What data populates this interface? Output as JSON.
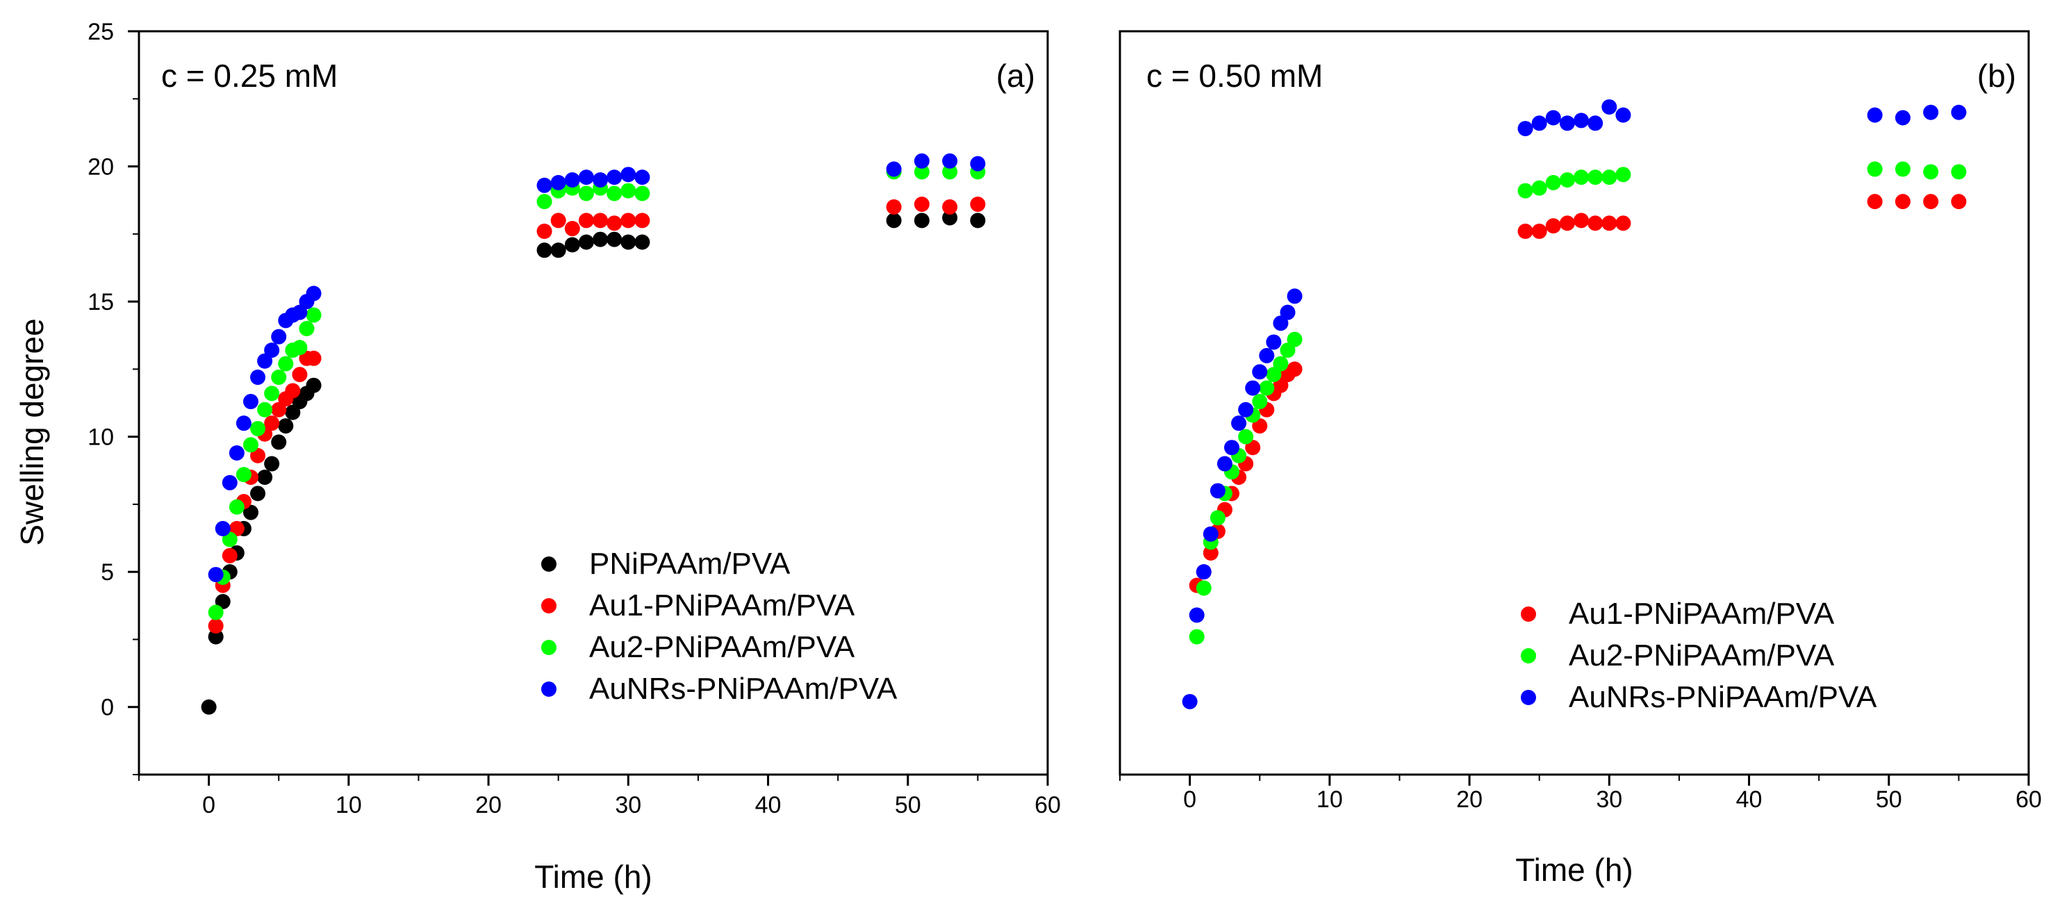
{
  "figure": {
    "ylabel": "Swelling degree",
    "colors": {
      "PNiPAAm/PVA": "#000000",
      "Au1-PNiPAAm/PVA": "#ff0000",
      "Au2-PNiPAAm/PVA": "#00ff00",
      "AuNRs-PNiPAAm/PVA": "#0000ff"
    }
  },
  "chart_data": [
    {
      "type": "scatter",
      "panel_label": "(a)",
      "annotation": "c = 0.25 mM",
      "xlabel": "Time (h)",
      "ylabel": "Swelling degree",
      "xlim": [
        -5,
        60
      ],
      "ylim": [
        -2.5,
        25
      ],
      "xticks": [
        "0",
        "10",
        "20",
        "30",
        "40",
        "50",
        "60"
      ],
      "yticks": [
        "0",
        "5",
        "10",
        "15",
        "20",
        "25"
      ],
      "legend_position": "bottom-right",
      "series": [
        {
          "name": "PNiPAAm/PVA",
          "x": [
            0,
            0.5,
            1,
            1.5,
            2,
            2.5,
            3,
            3.5,
            4,
            4.5,
            5,
            5.5,
            6,
            6.5,
            7,
            7.5,
            24,
            25,
            26,
            27,
            28,
            29,
            30,
            31,
            49,
            51,
            53,
            55
          ],
          "y": [
            0.0,
            2.6,
            3.9,
            5.0,
            5.7,
            6.6,
            7.2,
            7.9,
            8.5,
            9.0,
            9.8,
            10.4,
            10.9,
            11.3,
            11.6,
            11.9,
            16.9,
            16.9,
            17.1,
            17.2,
            17.3,
            17.3,
            17.2,
            17.2,
            18.0,
            18.0,
            18.1,
            18.0
          ]
        },
        {
          "name": "Au1-PNiPAAm/PVA",
          "x": [
            0.5,
            1,
            1.5,
            2,
            2.5,
            3,
            3.5,
            4,
            4.5,
            5,
            5.5,
            6,
            6.5,
            7,
            7.5,
            24,
            25,
            26,
            27,
            28,
            29,
            30,
            31,
            49,
            51,
            53,
            55
          ],
          "y": [
            3.0,
            4.5,
            5.6,
            6.6,
            7.6,
            8.5,
            9.3,
            10.1,
            10.5,
            11.0,
            11.4,
            11.7,
            12.3,
            12.9,
            12.9,
            17.6,
            18.0,
            17.7,
            18.0,
            18.0,
            17.9,
            18.0,
            18.0,
            18.5,
            18.6,
            18.5,
            18.6
          ]
        },
        {
          "name": "Au2-PNiPAAm/PVA",
          "x": [
            0.5,
            1,
            1.5,
            2,
            2.5,
            3,
            3.5,
            4,
            4.5,
            5,
            5.5,
            6,
            6.5,
            7,
            7.5,
            24,
            25,
            26,
            27,
            28,
            29,
            30,
            31,
            49,
            51,
            53,
            55
          ],
          "y": [
            3.5,
            4.8,
            6.2,
            7.4,
            8.6,
            9.7,
            10.3,
            11.0,
            11.6,
            12.2,
            12.7,
            13.2,
            13.3,
            14.0,
            14.5,
            18.7,
            19.1,
            19.2,
            19.0,
            19.2,
            19.0,
            19.1,
            19.0,
            19.8,
            19.8,
            19.8,
            19.8
          ]
        },
        {
          "name": "AuNRs-PNiPAAm/PVA",
          "x": [
            0.5,
            1,
            1.5,
            2,
            2.5,
            3,
            3.5,
            4,
            4.5,
            5,
            5.5,
            6,
            6.5,
            7,
            7.5,
            24,
            25,
            26,
            27,
            28,
            29,
            30,
            31,
            49,
            51,
            53,
            55
          ],
          "y": [
            4.9,
            6.6,
            8.3,
            9.4,
            10.5,
            11.3,
            12.2,
            12.8,
            13.2,
            13.7,
            14.3,
            14.5,
            14.6,
            15.0,
            15.3,
            19.3,
            19.4,
            19.5,
            19.6,
            19.5,
            19.6,
            19.7,
            19.6,
            19.9,
            20.2,
            20.2,
            20.1
          ]
        }
      ]
    },
    {
      "type": "scatter",
      "panel_label": "(b)",
      "annotation": "c = 0.50 mM",
      "xlabel": "Time (h)",
      "ylabel": "",
      "xlim": [
        -5,
        60
      ],
      "ylim": [
        -2.5,
        25
      ],
      "xticks": [
        "0",
        "10",
        "20",
        "30",
        "40",
        "50",
        "60"
      ],
      "yticks": [],
      "legend_position": "bottom-right",
      "series": [
        {
          "name": "Au1-PNiPAAm/PVA",
          "x": [
            0.5,
            1,
            1.5,
            2,
            2.5,
            3,
            3.5,
            4,
            4.5,
            5,
            5.5,
            6,
            6.5,
            7,
            7.5,
            24,
            25,
            26,
            27,
            28,
            29,
            30,
            31,
            49,
            51,
            53,
            55
          ],
          "y": [
            4.5,
            5.0,
            5.7,
            6.5,
            7.3,
            7.9,
            8.5,
            9.0,
            9.6,
            10.4,
            11.0,
            11.6,
            11.9,
            12.3,
            12.5,
            17.6,
            17.6,
            17.8,
            17.9,
            18.0,
            17.9,
            17.9,
            17.9,
            18.7,
            18.7,
            18.7,
            18.7
          ]
        },
        {
          "name": "Au2-PNiPAAm/PVA",
          "x": [
            0.5,
            1,
            1.5,
            2,
            2.5,
            3,
            3.5,
            4,
            4.5,
            5,
            5.5,
            6,
            6.5,
            7,
            7.5,
            24,
            25,
            26,
            27,
            28,
            29,
            30,
            31,
            49,
            51,
            53,
            55
          ],
          "y": [
            2.6,
            4.4,
            6.1,
            7.0,
            7.9,
            8.7,
            9.3,
            10.0,
            10.8,
            11.3,
            11.8,
            12.3,
            12.7,
            13.2,
            13.6,
            19.1,
            19.2,
            19.4,
            19.5,
            19.6,
            19.6,
            19.6,
            19.7,
            19.9,
            19.9,
            19.8,
            19.8
          ]
        },
        {
          "name": "AuNRs-PNiPAAm/PVA",
          "x": [
            0,
            0.5,
            1,
            1.5,
            2,
            2.5,
            3,
            3.5,
            4,
            4.5,
            5,
            5.5,
            6,
            6.5,
            7,
            7.5,
            24,
            25,
            26,
            27,
            28,
            29,
            30,
            31,
            49,
            51,
            53,
            55
          ],
          "y": [
            0.2,
            3.4,
            5.0,
            6.4,
            8.0,
            9.0,
            9.6,
            10.5,
            11.0,
            11.8,
            12.4,
            13.0,
            13.5,
            14.2,
            14.6,
            15.2,
            21.4,
            21.6,
            21.8,
            21.6,
            21.7,
            21.6,
            22.2,
            21.9,
            21.9,
            21.8,
            22.0,
            22.0
          ]
        }
      ]
    }
  ]
}
